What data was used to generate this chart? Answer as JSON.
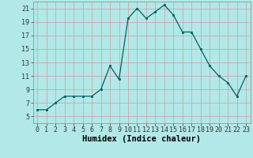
{
  "x": [
    0,
    1,
    2,
    3,
    4,
    5,
    6,
    7,
    8,
    9,
    10,
    11,
    12,
    13,
    14,
    15,
    16,
    17,
    18,
    19,
    20,
    21,
    22,
    23
  ],
  "y": [
    6,
    6,
    7,
    8,
    8,
    8,
    8,
    9,
    12.5,
    10.5,
    19.5,
    21,
    19.5,
    20.5,
    21.5,
    20,
    17.5,
    17.5,
    15,
    12.5,
    11,
    10,
    8,
    11
  ],
  "line_color": "#006060",
  "marker_color": "#006060",
  "bg_color": "#b2e8e8",
  "grid_major_color": "#d0f0f0",
  "grid_minor_color": "#c8ecec",
  "xlabel": "Humidex (Indice chaleur)",
  "xlim": [
    -0.5,
    23.5
  ],
  "ylim": [
    4,
    22
  ],
  "yticks": [
    5,
    7,
    9,
    11,
    13,
    15,
    17,
    19,
    21
  ],
  "xticks": [
    0,
    1,
    2,
    3,
    4,
    5,
    6,
    7,
    8,
    9,
    10,
    11,
    12,
    13,
    14,
    15,
    16,
    17,
    18,
    19,
    20,
    21,
    22,
    23
  ],
  "xtick_labels": [
    "0",
    "1",
    "2",
    "3",
    "4",
    "5",
    "6",
    "7",
    "8",
    "9",
    "10",
    "11",
    "12",
    "13",
    "14",
    "15",
    "16",
    "17",
    "18",
    "19",
    "20",
    "21",
    "22",
    "23"
  ],
  "label_fontsize": 7.5,
  "tick_fontsize": 6
}
